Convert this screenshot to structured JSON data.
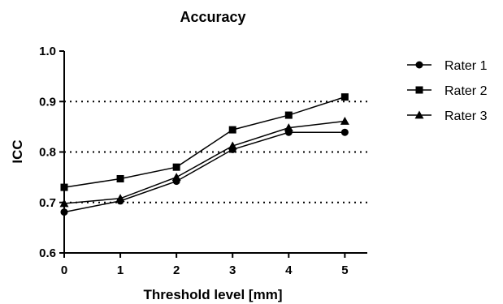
{
  "chart_data": {
    "type": "line",
    "title": "Accuracy",
    "xlabel": "Threshold level [mm]",
    "ylabel": "ICC",
    "x": [
      0,
      1,
      2,
      3,
      4,
      5
    ],
    "xlim": [
      0,
      5.4
    ],
    "ylim": [
      0.6,
      1.0
    ],
    "xticks": [
      0,
      1,
      2,
      3,
      4,
      5
    ],
    "xtick_labels": [
      "0",
      "1",
      "2",
      "3",
      "4",
      "5"
    ],
    "yticks": [
      0.6,
      0.7,
      0.8,
      0.9,
      1.0
    ],
    "ytick_labels": [
      "0.6",
      "0.7",
      "0.8",
      "0.9",
      "1.0"
    ],
    "reference_lines": [
      0.7,
      0.8,
      0.9
    ],
    "reference_line_style": "dotted",
    "legend_position": "right",
    "series": [
      {
        "name": "Rater 1",
        "marker": "circle",
        "values": [
          0.681,
          0.703,
          0.742,
          0.805,
          0.839,
          0.839
        ]
      },
      {
        "name": "Rater 2",
        "marker": "square",
        "values": [
          0.73,
          0.747,
          0.77,
          0.844,
          0.873,
          0.909
        ]
      },
      {
        "name": "Rater 3",
        "marker": "triangle",
        "values": [
          0.698,
          0.708,
          0.75,
          0.812,
          0.848,
          0.861
        ]
      }
    ],
    "color": "#000000"
  }
}
